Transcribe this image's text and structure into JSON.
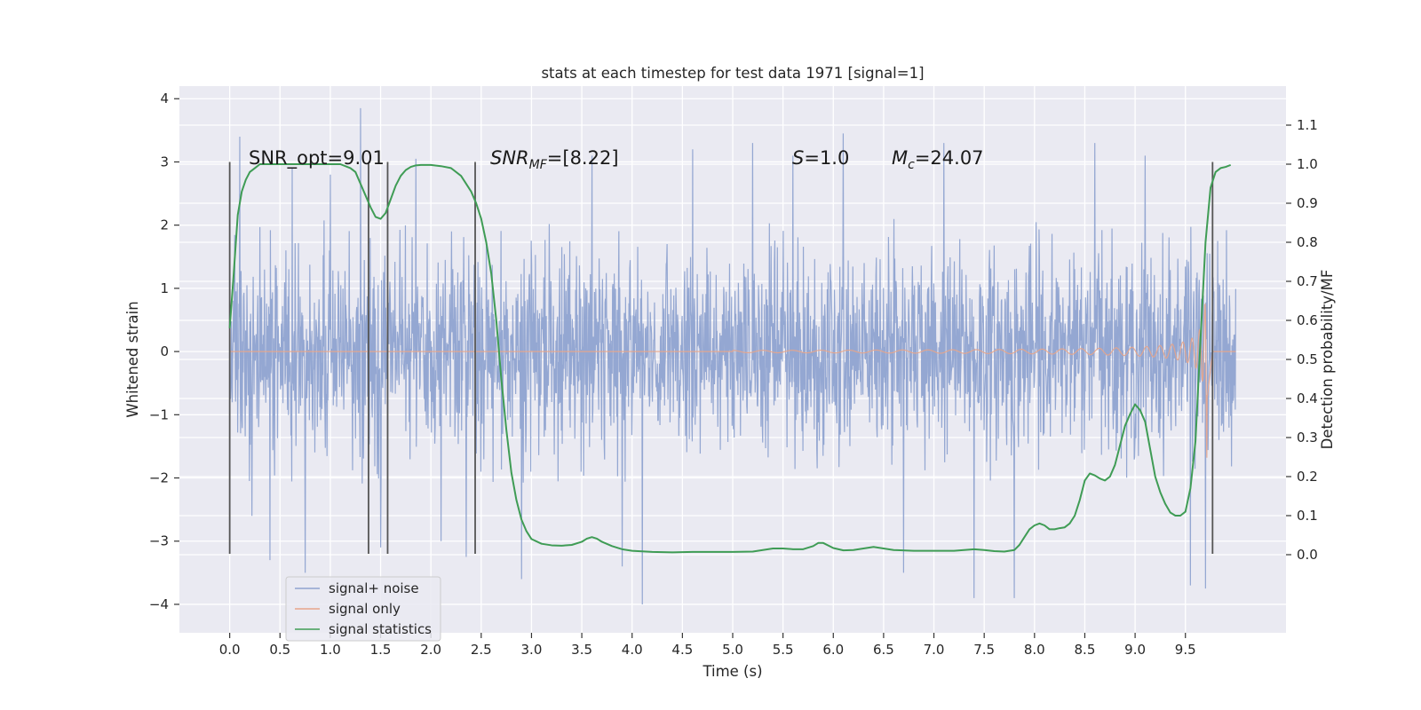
{
  "chart_data": {
    "type": "line",
    "title": "stats at each timestep for test data 1971 [signal=1]",
    "xlabel": "Time (s)",
    "ylabel": "Whitened strain",
    "ylabel_right": "Detection probability/MF",
    "xlim": [
      -0.5,
      10.5
    ],
    "ylim": [
      -4.45,
      4.2
    ],
    "ylim_right": [
      -0.2,
      1.2
    ],
    "x_ticks": [
      "0.0",
      "0.5",
      "1.0",
      "1.5",
      "2.0",
      "2.5",
      "3.0",
      "3.5",
      "4.0",
      "4.5",
      "5.0",
      "5.5",
      "6.0",
      "6.5",
      "7.0",
      "7.5",
      "8.0",
      "8.5",
      "9.0",
      "9.5"
    ],
    "y_ticks": [
      "4",
      "3",
      "2",
      "1",
      "0",
      "−1",
      "−2",
      "−3",
      "−4"
    ],
    "y_ticks_right": [
      "1.1",
      "1.0",
      "0.9",
      "0.8",
      "0.7",
      "0.6",
      "0.5",
      "0.4",
      "0.3",
      "0.2",
      "0.1",
      "0.0"
    ],
    "grid": true,
    "legend_placement": "lower-left",
    "annotations": {
      "snr_opt": "SNR_opt=9.01",
      "snr_mf_main": "SNR",
      "snr_mf_sub": "MF",
      "snr_mf_val": "=[8.22]",
      "s_main": "S",
      "s_val": "=1.0",
      "mc_main": "M",
      "mc_sub": "c",
      "mc_val": "=24.07"
    },
    "vlines": [
      0.0,
      1.38,
      1.57,
      2.44,
      9.77
    ],
    "vline_range": [
      -3.2,
      3.0
    ],
    "series": [
      {
        "name": "signal+ noise",
        "color": "#8fa3d0",
        "duration": 10.0,
        "envelope": 2.1,
        "spikes": [
          [
            0.1,
            3.4
          ],
          [
            0.22,
            -2.6
          ],
          [
            0.4,
            -3.3
          ],
          [
            0.62,
            2.9
          ],
          [
            0.75,
            -3.5
          ],
          [
            1.0,
            2.8
          ],
          [
            1.3,
            3.85
          ],
          [
            1.5,
            -3.1
          ],
          [
            1.85,
            3.05
          ],
          [
            2.1,
            -3.0
          ],
          [
            2.35,
            -3.25
          ],
          [
            2.9,
            -3.6
          ],
          [
            3.6,
            3.1
          ],
          [
            3.9,
            -3.4
          ],
          [
            4.1,
            -4.0
          ],
          [
            4.6,
            3.2
          ],
          [
            5.2,
            3.3
          ],
          [
            5.6,
            3.1
          ],
          [
            6.1,
            3.45
          ],
          [
            6.7,
            -3.5
          ],
          [
            7.1,
            3.3
          ],
          [
            7.4,
            -3.9
          ],
          [
            7.8,
            -3.9
          ],
          [
            8.6,
            3.3
          ],
          [
            9.1,
            3.1
          ],
          [
            9.55,
            -3.7
          ],
          [
            9.7,
            -3.75
          ]
        ]
      },
      {
        "name": "signal only",
        "color": "#e8a58a",
        "chirp": {
          "start": 5.0,
          "end": 9.72,
          "peak": 1.85
        }
      },
      {
        "name": "signal statistics",
        "color": "#3f9c55",
        "x": [
          0.0,
          0.04,
          0.08,
          0.12,
          0.16,
          0.2,
          0.25,
          0.3,
          0.4,
          0.5,
          0.6,
          0.7,
          0.8,
          0.9,
          1.0,
          1.1,
          1.2,
          1.25,
          1.3,
          1.35,
          1.4,
          1.45,
          1.5,
          1.55,
          1.6,
          1.65,
          1.7,
          1.75,
          1.8,
          1.85,
          1.9,
          2.0,
          2.1,
          2.2,
          2.3,
          2.4,
          2.45,
          2.5,
          2.55,
          2.6,
          2.65,
          2.7,
          2.75,
          2.8,
          2.85,
          2.9,
          2.95,
          3.0,
          3.1,
          3.2,
          3.3,
          3.4,
          3.5,
          3.55,
          3.6,
          3.65,
          3.7,
          3.8,
          3.9,
          4.0,
          4.2,
          4.4,
          4.6,
          4.8,
          5.0,
          5.2,
          5.3,
          5.4,
          5.5,
          5.6,
          5.7,
          5.8,
          5.85,
          5.9,
          6.0,
          6.1,
          6.2,
          6.3,
          6.4,
          6.5,
          6.6,
          6.8,
          7.0,
          7.2,
          7.4,
          7.5,
          7.6,
          7.7,
          7.8,
          7.85,
          7.9,
          7.95,
          8.0,
          8.05,
          8.1,
          8.15,
          8.2,
          8.25,
          8.3,
          8.35,
          8.4,
          8.45,
          8.5,
          8.55,
          8.6,
          8.65,
          8.7,
          8.75,
          8.8,
          8.85,
          8.9,
          8.95,
          9.0,
          9.05,
          9.1,
          9.15,
          9.2,
          9.25,
          9.3,
          9.35,
          9.4,
          9.45,
          9.5,
          9.55,
          9.6,
          9.65,
          9.7,
          9.75,
          9.8,
          9.85,
          9.9,
          9.95
        ],
        "values": [
          0.58,
          0.72,
          0.87,
          0.93,
          0.96,
          0.98,
          0.99,
          1.0,
          1.0,
          1.0,
          1.0,
          1.0,
          1.0,
          1.0,
          1.0,
          1.0,
          0.99,
          0.98,
          0.95,
          0.92,
          0.89,
          0.865,
          0.86,
          0.875,
          0.91,
          0.945,
          0.97,
          0.985,
          0.993,
          0.997,
          0.998,
          0.998,
          0.995,
          0.99,
          0.97,
          0.93,
          0.9,
          0.86,
          0.8,
          0.72,
          0.6,
          0.45,
          0.32,
          0.21,
          0.14,
          0.09,
          0.06,
          0.04,
          0.028,
          0.024,
          0.023,
          0.025,
          0.033,
          0.041,
          0.045,
          0.041,
          0.033,
          0.022,
          0.014,
          0.01,
          0.007,
          0.006,
          0.007,
          0.007,
          0.007,
          0.008,
          0.012,
          0.016,
          0.016,
          0.014,
          0.014,
          0.022,
          0.03,
          0.03,
          0.017,
          0.011,
          0.012,
          0.016,
          0.02,
          0.016,
          0.012,
          0.01,
          0.01,
          0.01,
          0.014,
          0.012,
          0.009,
          0.008,
          0.012,
          0.025,
          0.045,
          0.065,
          0.075,
          0.08,
          0.075,
          0.065,
          0.065,
          0.068,
          0.07,
          0.08,
          0.1,
          0.14,
          0.19,
          0.208,
          0.203,
          0.195,
          0.19,
          0.2,
          0.23,
          0.28,
          0.33,
          0.36,
          0.385,
          0.37,
          0.34,
          0.27,
          0.2,
          0.16,
          0.13,
          0.108,
          0.1,
          0.1,
          0.11,
          0.17,
          0.29,
          0.55,
          0.8,
          0.94,
          0.98,
          0.99,
          0.993,
          0.998
        ]
      }
    ]
  }
}
